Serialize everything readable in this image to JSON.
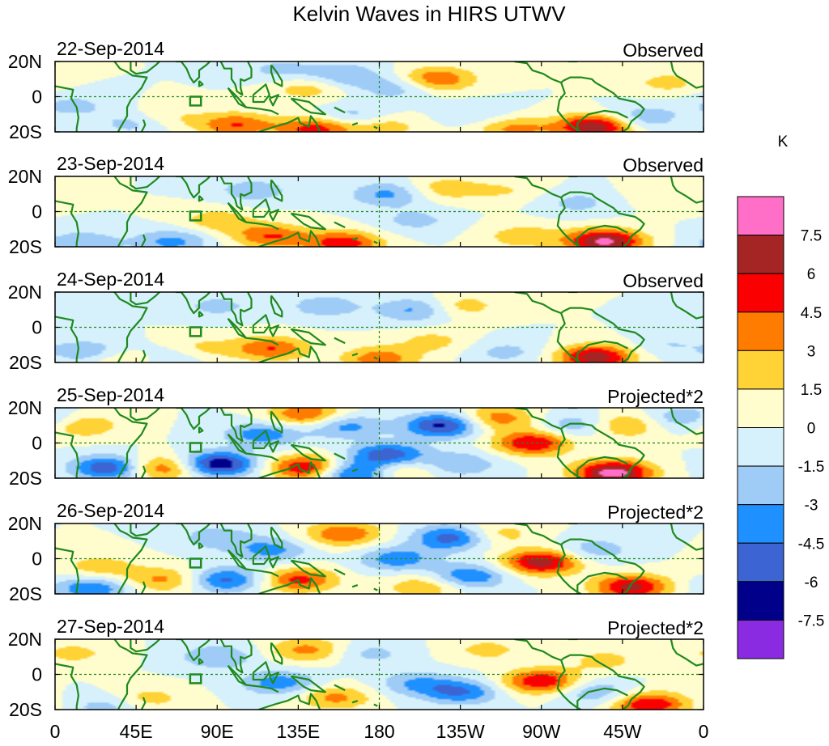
{
  "colors": {
    "contour": [
      "#8a2be2",
      "#00008b",
      "#3c64d2",
      "#1e90ff",
      "#9fcbf7",
      "#d6f1fb",
      "#fffdcd",
      "#ffd335",
      "#ff7c00",
      "#fb0000",
      "#a52525",
      "#ff6ec7"
    ],
    "coast": "#1f8a1f",
    "equator": "#1f8a1f"
  },
  "chart_data": {
    "type": "heatmap",
    "title": "Kelvin Waves in HIRS UTWV",
    "units": "K",
    "x_ticks": [
      "0",
      "45E",
      "90E",
      "135E",
      "180",
      "135W",
      "90W",
      "45W",
      "0"
    ],
    "x_tick_values": [
      0,
      45,
      90,
      135,
      180,
      225,
      270,
      315,
      360
    ],
    "y_ticks": [
      "20N",
      "0",
      "20S"
    ],
    "y_tick_values": [
      20,
      0,
      -20
    ],
    "xlim": [
      0,
      360
    ],
    "ylim": [
      -20,
      20
    ],
    "colorbar": {
      "labels": [
        "7.5",
        "6",
        "4.5",
        "3",
        "1.5",
        "0",
        "-1.5",
        "-3",
        "-4.5",
        "-6",
        "-7.5"
      ],
      "levels": [
        7.5,
        6,
        4.5,
        3,
        1.5,
        0,
        -1.5,
        -3,
        -4.5,
        -6,
        -7.5
      ],
      "range": [
        -9,
        9
      ]
    },
    "panels": [
      {
        "date": "22-Sep-2014",
        "type": "Observed",
        "blobs": [
          {
            "lon": 212,
            "lat": 10,
            "amp": 4.5
          },
          {
            "lon": 140,
            "lat": 5,
            "amp": 2.5
          },
          {
            "lon": 300,
            "lat": -17,
            "amp": 7.5
          },
          {
            "lon": 100,
            "lat": -16,
            "amp": 4.5
          },
          {
            "lon": 145,
            "lat": -18,
            "amp": 5.5
          },
          {
            "lon": 255,
            "lat": -18,
            "amp": 3.5
          },
          {
            "lon": 180,
            "lat": -17,
            "amp": 3
          },
          {
            "lon": 340,
            "lat": 8,
            "amp": 2
          },
          {
            "lon": 60,
            "lat": -12,
            "amp": 2
          },
          {
            "lon": 125,
            "lat": 15,
            "amp": -2
          },
          {
            "lon": 160,
            "lat": 12,
            "amp": -3
          },
          {
            "lon": 190,
            "lat": 5,
            "amp": -2.5
          },
          {
            "lon": 10,
            "lat": -5,
            "amp": -2
          },
          {
            "lon": 165,
            "lat": -12,
            "amp": -3
          },
          {
            "lon": 45,
            "lat": -15,
            "amp": -2.5
          },
          {
            "lon": 235,
            "lat": -10,
            "amp": -1.5
          },
          {
            "lon": 325,
            "lat": -12,
            "amp": -3
          }
        ]
      },
      {
        "date": "23-Sep-2014",
        "type": "Observed",
        "blobs": [
          {
            "lon": 305,
            "lat": -17,
            "amp": 8
          },
          {
            "lon": 120,
            "lat": -14,
            "amp": 4.5
          },
          {
            "lon": 160,
            "lat": -18,
            "amp": 5.5
          },
          {
            "lon": 215,
            "lat": 13,
            "amp": 2.5
          },
          {
            "lon": 260,
            "lat": -14,
            "amp": 2.5
          },
          {
            "lon": 90,
            "lat": -5,
            "amp": 2.5
          },
          {
            "lon": 250,
            "lat": 12,
            "amp": 1.5
          },
          {
            "lon": 185,
            "lat": 10,
            "amp": -3.5
          },
          {
            "lon": 65,
            "lat": -17,
            "amp": -3.5
          },
          {
            "lon": 15,
            "lat": -18,
            "amp": -3
          },
          {
            "lon": 110,
            "lat": 12,
            "amp": -2.5
          },
          {
            "lon": 200,
            "lat": -5,
            "amp": -2
          },
          {
            "lon": 290,
            "lat": 5,
            "amp": -2
          },
          {
            "lon": 340,
            "lat": 10,
            "amp": 1.5
          }
        ]
      },
      {
        "date": "24-Sep-2014",
        "type": "Observed",
        "blobs": [
          {
            "lon": 300,
            "lat": -17,
            "amp": 7
          },
          {
            "lon": 120,
            "lat": -12,
            "amp": 4.5
          },
          {
            "lon": 180,
            "lat": -18,
            "amp": 4
          },
          {
            "lon": 225,
            "lat": 12,
            "amp": 2.5
          },
          {
            "lon": 210,
            "lat": -8,
            "amp": 2
          },
          {
            "lon": 40,
            "lat": -18,
            "amp": 3
          },
          {
            "lon": 80,
            "lat": -12,
            "amp": 2
          },
          {
            "lon": 200,
            "lat": 10,
            "amp": -3.5
          },
          {
            "lon": 150,
            "lat": 12,
            "amp": -2.5
          },
          {
            "lon": 20,
            "lat": -14,
            "amp": -3
          },
          {
            "lon": 60,
            "lat": -17,
            "amp": -2.5
          },
          {
            "lon": 90,
            "lat": 12,
            "amp": -2
          },
          {
            "lon": 250,
            "lat": -14,
            "amp": -2
          },
          {
            "lon": 340,
            "lat": -10,
            "amp": -1.5
          }
        ]
      },
      {
        "date": "25-Sep-2014",
        "type": "Projected*2",
        "blobs": [
          {
            "lon": 265,
            "lat": 0,
            "amp": 6
          },
          {
            "lon": 310,
            "lat": -17,
            "amp": 8.5
          },
          {
            "lon": 140,
            "lat": -14,
            "amp": 6.5
          },
          {
            "lon": 140,
            "lat": 16,
            "amp": 5
          },
          {
            "lon": 60,
            "lat": -14,
            "amp": 5
          },
          {
            "lon": 245,
            "lat": 14,
            "amp": 4
          },
          {
            "lon": 315,
            "lat": 10,
            "amp": 3.5
          },
          {
            "lon": 190,
            "lat": -15,
            "amp": 3
          },
          {
            "lon": 15,
            "lat": 10,
            "amp": 3
          },
          {
            "lon": 215,
            "lat": 10,
            "amp": -6.5
          },
          {
            "lon": 90,
            "lat": -12,
            "amp": -7.5
          },
          {
            "lon": 185,
            "lat": -7,
            "amp": -6
          },
          {
            "lon": 30,
            "lat": -14,
            "amp": -6
          },
          {
            "lon": 165,
            "lat": -17,
            "amp": -6
          },
          {
            "lon": 115,
            "lat": 5,
            "amp": -4
          },
          {
            "lon": 160,
            "lat": 10,
            "amp": -4
          },
          {
            "lon": 225,
            "lat": -12,
            "amp": -3
          },
          {
            "lon": 290,
            "lat": 10,
            "amp": -3
          },
          {
            "lon": 350,
            "lat": 14,
            "amp": -3
          }
        ]
      },
      {
        "date": "26-Sep-2014",
        "type": "Projected*2",
        "blobs": [
          {
            "lon": 270,
            "lat": -2,
            "amp": 7
          },
          {
            "lon": 135,
            "lat": -12,
            "amp": 5
          },
          {
            "lon": 160,
            "lat": 14,
            "amp": 4.5
          },
          {
            "lon": 320,
            "lat": -16,
            "amp": 6.5
          },
          {
            "lon": 60,
            "lat": -12,
            "amp": 3.5
          },
          {
            "lon": 205,
            "lat": -16,
            "amp": 3
          },
          {
            "lon": 25,
            "lat": -5,
            "amp": 2.5
          },
          {
            "lon": 245,
            "lat": 14,
            "amp": 2.5
          },
          {
            "lon": 220,
            "lat": 12,
            "amp": -5.5
          },
          {
            "lon": 95,
            "lat": -12,
            "amp": -5
          },
          {
            "lon": 190,
            "lat": 0,
            "amp": -4
          },
          {
            "lon": 230,
            "lat": -10,
            "amp": -4.5
          },
          {
            "lon": 20,
            "lat": -17,
            "amp": -4.5
          },
          {
            "lon": 120,
            "lat": 5,
            "amp": -3.5
          },
          {
            "lon": 90,
            "lat": 12,
            "amp": -2.5
          },
          {
            "lon": 300,
            "lat": 5,
            "amp": -2.5
          }
        ]
      },
      {
        "date": "27-Sep-2014",
        "type": "Projected*2",
        "blobs": [
          {
            "lon": 270,
            "lat": -4,
            "amp": 6
          },
          {
            "lon": 140,
            "lat": 14,
            "amp": 3.5
          },
          {
            "lon": 155,
            "lat": -13,
            "amp": 3.5
          },
          {
            "lon": 330,
            "lat": -17,
            "amp": 6
          },
          {
            "lon": 240,
            "lat": 14,
            "amp": 2
          },
          {
            "lon": 50,
            "lat": -14,
            "amp": 2.5
          },
          {
            "lon": 305,
            "lat": 8,
            "amp": 2
          },
          {
            "lon": 10,
            "lat": 12,
            "amp": 2
          },
          {
            "lon": 225,
            "lat": -10,
            "amp": -4.5
          },
          {
            "lon": 125,
            "lat": -5,
            "amp": -4
          },
          {
            "lon": 200,
            "lat": -5,
            "amp": -3
          },
          {
            "lon": 90,
            "lat": 10,
            "amp": -3
          },
          {
            "lon": 300,
            "lat": -10,
            "amp": -3
          },
          {
            "lon": 30,
            "lat": -18,
            "amp": -2.5
          },
          {
            "lon": 175,
            "lat": 12,
            "amp": -2
          }
        ]
      }
    ]
  }
}
